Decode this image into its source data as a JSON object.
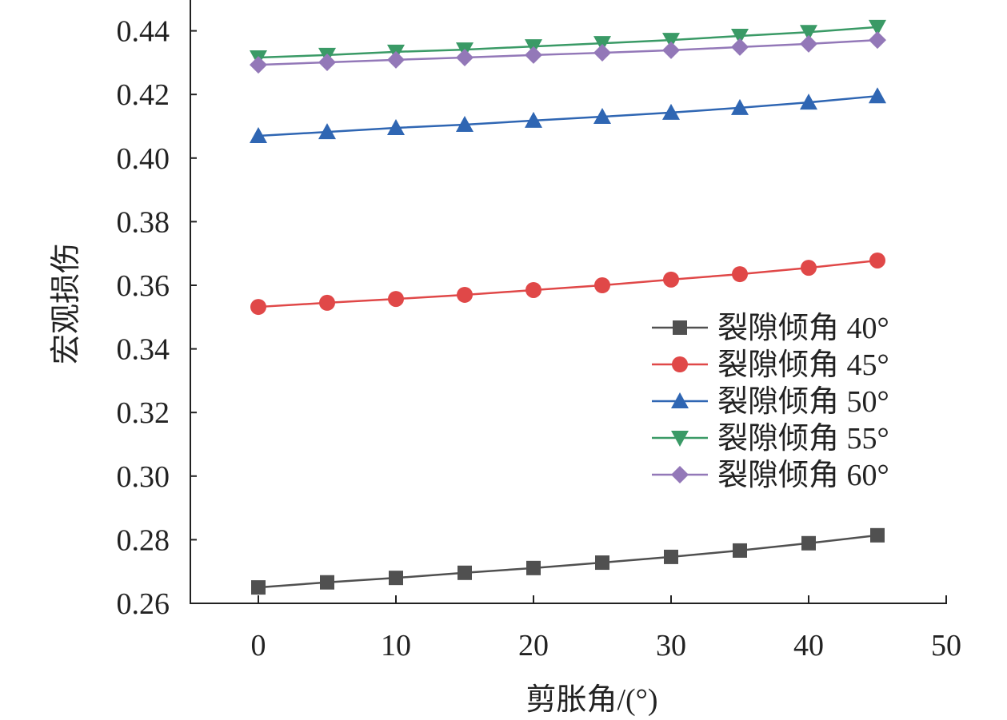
{
  "chart_data": {
    "type": "line",
    "title": "",
    "xlabel": "剪胀角/(°)",
    "ylabel": "宏观损伤",
    "xlim": [
      -5,
      50
    ],
    "ylim": [
      0.26,
      0.45
    ],
    "xticks": [
      0,
      10,
      20,
      30,
      40,
      50
    ],
    "xtick_labels": [
      "0",
      "10",
      "20",
      "30",
      "40",
      "50"
    ],
    "yticks": [
      0.26,
      0.28,
      0.3,
      0.32,
      0.34,
      0.36,
      0.38,
      0.4,
      0.42,
      0.44
    ],
    "ytick_labels": [
      "0.26",
      "0.28",
      "0.30",
      "0.32",
      "0.34",
      "0.36",
      "0.38",
      "0.40",
      "0.42",
      "0.44"
    ],
    "grid": false,
    "legend_position": "center-right",
    "x": [
      0,
      5,
      10,
      15,
      20,
      25,
      30,
      35,
      40,
      45
    ],
    "series": [
      {
        "name": "裂隙倾角 40°",
        "color": "#505050",
        "marker": "square",
        "values": [
          0.265,
          0.2666,
          0.268,
          0.2696,
          0.2711,
          0.2728,
          0.2746,
          0.2766,
          0.2789,
          0.2814
        ]
      },
      {
        "name": "裂隙倾角 45°",
        "color": "#e04848",
        "marker": "circle",
        "values": [
          0.3532,
          0.3545,
          0.3557,
          0.357,
          0.3585,
          0.36,
          0.3618,
          0.3635,
          0.3655,
          0.3678
        ]
      },
      {
        "name": "裂隙倾角 50°",
        "color": "#2f66b3",
        "marker": "triangle-up",
        "values": [
          0.407,
          0.4082,
          0.4095,
          0.4105,
          0.4118,
          0.413,
          0.4143,
          0.4158,
          0.4175,
          0.4195
        ]
      },
      {
        "name": "裂隙倾角 55°",
        "color": "#3a9a66",
        "marker": "triangle-down",
        "values": [
          0.4316,
          0.4324,
          0.4334,
          0.4341,
          0.4351,
          0.4361,
          0.4371,
          0.4384,
          0.4396,
          0.4412
        ]
      },
      {
        "name": "裂隙倾角 60°",
        "color": "#9378b8",
        "marker": "diamond",
        "values": [
          0.4293,
          0.4301,
          0.4309,
          0.4316,
          0.4324,
          0.4331,
          0.4339,
          0.4349,
          0.4359,
          0.4371
        ]
      }
    ]
  }
}
